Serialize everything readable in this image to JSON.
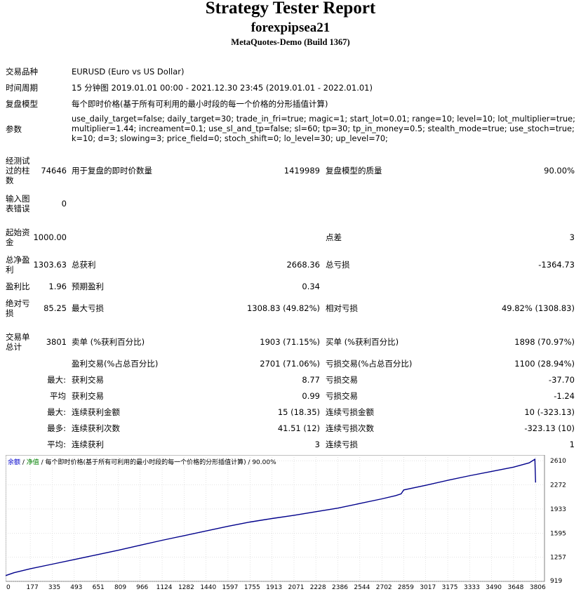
{
  "header": {
    "title": "Strategy Tester Report",
    "subtitle": "forexpipsea21",
    "build": "MetaQuotes-Demo (Build 1367)"
  },
  "settings": {
    "symbol_label": "交易品种",
    "symbol_value": "EURUSD (Euro vs US Dollar)",
    "period_label": "时间周期",
    "period_value": "15 分钟图 2019.01.01 00:00 - 2021.12.30 23:45 (2019.01.01 - 2022.01.01)",
    "model_label": "复盘模型",
    "model_value": "每个即时价格(基于所有可利用的最小时段的每一个价格的分形插值计算)",
    "params_label": "参数",
    "params_value": "use_daily_target=false; daily_target=30; trade_in_fri=true; magic=1; start_lot=0.01; range=10; level=10; lot_multiplier=true; multiplier=1.44; increament=0.1; use_sl_and_tp=false; sl=60; tp=30; tp_in_money=0.5; stealth_mode=true; use_stoch=true; k=10; d=3; slowing=3; price_field=0; stoch_shift=0; lo_level=30; up_level=70;"
  },
  "quality": {
    "bars_label": "经测试过的柱数",
    "bars_value": "74646",
    "ticks_label": "用于复盘的即时价数量",
    "ticks_value": "1419989",
    "quality_label": "复盘模型的质量",
    "quality_value": "90.00%",
    "errors_label": "输入图表错误",
    "errors_value": "0"
  },
  "results": {
    "deposit_label": "起始资金",
    "deposit_value": "1000.00",
    "spread_label": "点差",
    "spread_value": "3",
    "net_label": "总净盈利",
    "net_value": "1303.63",
    "gross_profit_label": "总获利",
    "gross_profit_value": "2668.36",
    "gross_loss_label": "总亏损",
    "gross_loss_value": "-1364.73",
    "pf_label": "盈利比",
    "pf_value": "1.96",
    "payoff_label": "预期盈利",
    "payoff_value": "0.34",
    "abs_dd_label": "绝对亏损",
    "abs_dd_value": "85.25",
    "max_dd_label": "最大亏损",
    "max_dd_value": "1308.83 (49.82%)",
    "rel_dd_label": "相对亏损",
    "rel_dd_value": "49.82% (1308.83)"
  },
  "trades": {
    "total_label": "交易单总计",
    "total_value": "3801",
    "short_label": "卖单 (%获利百分比)",
    "short_value": "1903 (71.15%)",
    "long_label": "买单 (%获利百分比)",
    "long_value": "1898 (70.97%)",
    "profit_trades_label": "盈利交易(%占总百分比)",
    "profit_trades_value": "2701 (71.06%)",
    "loss_trades_label": "亏损交易(%占总百分比)",
    "loss_trades_value": "1100 (28.94%)",
    "rows": [
      {
        "prefix": "最大:",
        "l_label": "获利交易",
        "l_value": "8.77",
        "r_label": "亏损交易",
        "r_value": "-37.70"
      },
      {
        "prefix": "平均",
        "l_label": "获利交易",
        "l_value": "0.99",
        "r_label": "亏损交易",
        "r_value": "-1.24"
      },
      {
        "prefix": "最大:",
        "l_label": "连续获利金额",
        "l_value": "15 (18.35)",
        "r_label": "连续亏损金额",
        "r_value": "10 (-323.13)"
      },
      {
        "prefix": "最多:",
        "l_label": "连续获利次数",
        "l_value": "41.51 (12)",
        "r_label": "连续亏损次数",
        "r_value": "-323.13 (10)"
      },
      {
        "prefix": "平均:",
        "l_label": "连续获利",
        "l_value": "3",
        "r_label": "连续亏损",
        "r_value": "1"
      }
    ]
  },
  "chart_data": {
    "type": "line",
    "legend": {
      "balance": "余额",
      "sep1": " / ",
      "equity": "净值",
      "rest": " / 每个即时价格(基于所有可利用的最小时段的每一个价格的分形插值计算) / 90.00%"
    },
    "x_ticks": [
      0,
      177,
      335,
      493,
      651,
      809,
      966,
      1124,
      1282,
      1440,
      1597,
      1755,
      1913,
      2071,
      2228,
      2386,
      2544,
      2702,
      2859,
      3017,
      3175,
      3333,
      3490,
      3648,
      3806
    ],
    "y_ticks": [
      919,
      1257,
      1595,
      1933,
      2272,
      2610
    ],
    "xlim": [
      0,
      3870
    ],
    "ylim": [
      919,
      2690
    ],
    "series": [
      {
        "color": "#00008b",
        "x": [
          0,
          60,
          177,
          335,
          493,
          651,
          809,
          966,
          1124,
          1282,
          1440,
          1597,
          1755,
          1913,
          2071,
          2228,
          2386,
          2544,
          2702,
          2800,
          2840,
          2859,
          3017,
          3175,
          3333,
          3490,
          3648,
          3760,
          3785,
          3801,
          3806
        ],
        "y": [
          1000,
          1040,
          1095,
          1160,
          1225,
          1290,
          1355,
          1425,
          1495,
          1560,
          1625,
          1690,
          1750,
          1800,
          1845,
          1895,
          1945,
          2010,
          2075,
          2120,
          2145,
          2200,
          2265,
          2335,
          2400,
          2460,
          2520,
          2580,
          2610,
          2630,
          2304
        ]
      }
    ]
  },
  "colors": {
    "balance_line": "#00008b",
    "legend_balance": "#0000cc",
    "legend_equity": "#008000",
    "grid": "#c8c8c8",
    "plot_border": "#808080"
  }
}
